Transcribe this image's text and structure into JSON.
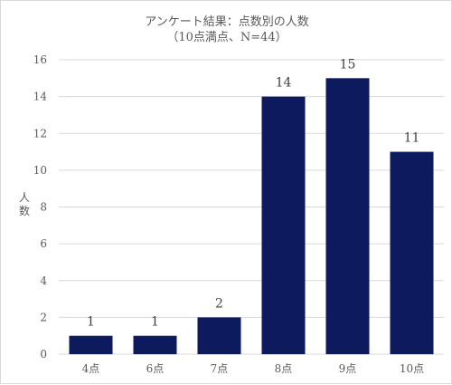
{
  "chart_data": {
    "type": "bar",
    "title": "アンケート結果：点数別の人数",
    "subtitle": "（10点満点、N=44）",
    "ylabel_chars": [
      "人",
      "数"
    ],
    "xlabel": "",
    "categories": [
      "4点",
      "6点",
      "7点",
      "8点",
      "9点",
      "10点"
    ],
    "values": [
      1,
      1,
      2,
      14,
      15,
      11
    ],
    "data_labels": [
      "1",
      "1",
      "2",
      "14",
      "15",
      "11"
    ],
    "ylim": [
      0,
      16
    ],
    "yticks": [
      0,
      2,
      4,
      6,
      8,
      10,
      12,
      14,
      16
    ],
    "ytick_labels": [
      "0",
      "2",
      "4",
      "6",
      "8",
      "10",
      "12",
      "14",
      "16"
    ],
    "grid": true,
    "bar_color": "#0d1a5e",
    "grid_color": "#d9d9d9"
  }
}
